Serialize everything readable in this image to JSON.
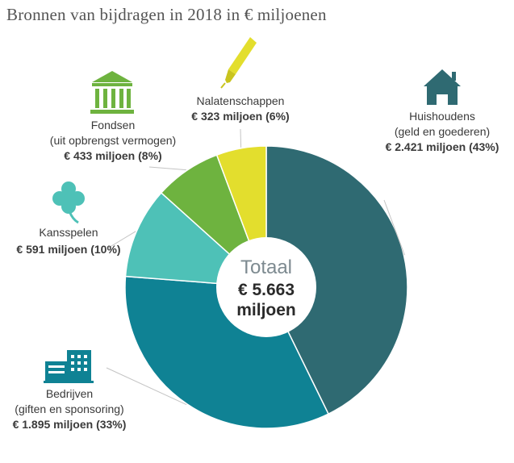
{
  "title": "Bronnen van bijdragen in 2018 in € miljoenen",
  "total": {
    "heading": "Totaal",
    "amount": "€ 5.663",
    "unit": "miljoen"
  },
  "chart_data": {
    "type": "pie",
    "title": "Bronnen van bijdragen in 2018 in € miljoenen",
    "unit": "€ miljoen",
    "total": 5663,
    "slices": [
      {
        "key": "huishoudens",
        "name": "Huishoudens",
        "sub": "(geld en goederen)",
        "value": 2421,
        "percent": 43,
        "value_label": "€ 2.421 miljoen (43%)",
        "color": "#2f6a72",
        "icon": "house-icon"
      },
      {
        "key": "bedrijven",
        "name": "Bedrijven",
        "sub": "(giften en sponsoring)",
        "value": 1895,
        "percent": 33,
        "value_label": "€ 1.895 miljoen (33%)",
        "color": "#0f8294",
        "icon": "office-buildings-icon"
      },
      {
        "key": "kansspelen",
        "name": "Kansspelen",
        "sub": "",
        "value": 591,
        "percent": 10,
        "value_label": "€ 591 miljoen (10%)",
        "color": "#4ec1b7",
        "icon": "clover-icon"
      },
      {
        "key": "fondsen",
        "name": "Fondsen",
        "sub": "(uit opbrengst vermogen)",
        "value": 433,
        "percent": 8,
        "value_label": "€ 433 miljoen (8%)",
        "color": "#6eb33f",
        "icon": "bank-building-icon"
      },
      {
        "key": "nalatenschappen",
        "name": "Nalatenschappen",
        "sub": "",
        "value": 323,
        "percent": 6,
        "value_label": "€ 323 miljoen (6%)",
        "color": "#e3de2d",
        "icon": "fountain-pen-icon"
      }
    ]
  }
}
